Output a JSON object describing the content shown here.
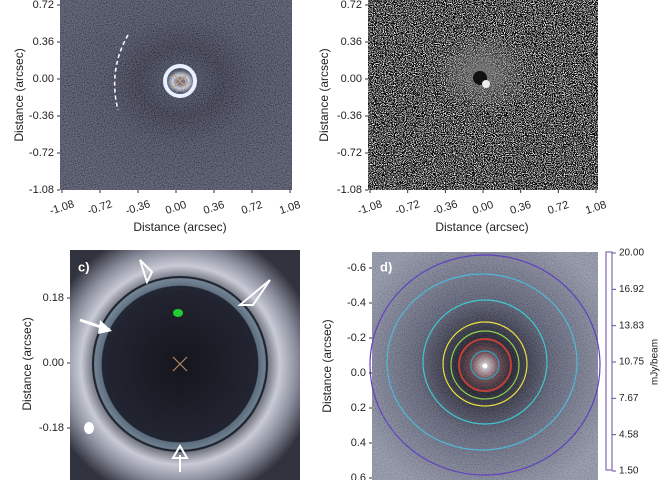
{
  "panels": [
    {
      "label": null,
      "y_label": "Distance (arcsec)",
      "x_label": "Distance (arcsec)",
      "y_ticks": [
        "0.72",
        "0.36",
        "0.00",
        "-0.36",
        "-0.72",
        "-1.08"
      ],
      "x_ticks": [
        "-1.08",
        "-0.72",
        "-0.36",
        "0.00",
        "0.36",
        "0.72",
        "1.08"
      ]
    },
    {
      "label": null,
      "y_label": "Distance (arcsec)",
      "x_label": "Distance (arcsec)",
      "y_ticks": [
        "0.72",
        "0.36",
        "0.00",
        "-0.36",
        "-0.72",
        "-1.08"
      ],
      "x_ticks": [
        "-1.08",
        "-0.72",
        "-0.36",
        "0.00",
        "0.36",
        "0.72",
        "1.08"
      ]
    },
    {
      "label": "c)",
      "y_label": "Distance (arcsec)",
      "y_ticks": [
        "0.18",
        "0.00",
        "-0.18"
      ]
    },
    {
      "label": "d)",
      "y_label": "Distance (arcsec)",
      "y_ticks": [
        "-0.6",
        "-0.4",
        "-0.2",
        "0.0",
        "0.2",
        "0.4",
        "0.6"
      ],
      "colorbar_ticks": [
        "20.00",
        "16.92",
        "13.83",
        "10.75",
        "7.67",
        "4.58",
        "1.50"
      ],
      "colorbar_label": "mJy/beam"
    }
  ]
}
